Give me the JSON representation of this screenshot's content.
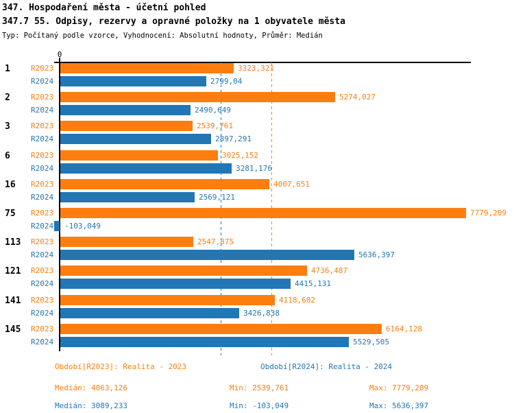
{
  "header": {
    "title1": "347. Hospodaření města - účetní pohled",
    "title2": "347.7 55. Odpisy, rezervy a opravné položky na 1 obyvatele města",
    "meta": "Typ: Počítaný podle vzorce, Vyhodnocení: Absolutní hodnoty, Průměr: Medián"
  },
  "colors": {
    "r2023": "#fd7e0e",
    "r2024": "#2276b4",
    "axis": "#000000"
  },
  "chart_data": {
    "type": "bar",
    "orientation": "horizontal",
    "title": "347.7 55. Odpisy, rezervy a opravné položky na 1 obyvatele města",
    "categories": [
      "1",
      "2",
      "3",
      "6",
      "16",
      "75",
      "113",
      "121",
      "141",
      "145"
    ],
    "series": [
      {
        "name": "R2023",
        "period": "Realita - 2023",
        "color": "#fd7e0e",
        "values": [
          3323.321,
          5274.027,
          2539.761,
          3025.152,
          4007.651,
          7779.209,
          2547.875,
          4736.487,
          4118.602,
          6164.128
        ],
        "value_labels": [
          "3323,321",
          "5274,027",
          "2539,761",
          "3025,152",
          "4007,651",
          "7779,209",
          "2547,875",
          "4736,487",
          "4118,602",
          "6164,128"
        ],
        "median": 4063.126,
        "min": 2539.761,
        "max": 7779.209
      },
      {
        "name": "R2024",
        "period": "Realita - 2024",
        "color": "#2276b4",
        "values": [
          2799.04,
          2490.649,
          2897.291,
          3281.176,
          2569.121,
          -103.049,
          5636.397,
          4415.131,
          3426.838,
          5529.505
        ],
        "value_labels": [
          "2799,04",
          "2490,649",
          "2897,291",
          "3281,176",
          "2569,121",
          "-103,049",
          "5636,397",
          "4415,131",
          "3426,838",
          "5529,505"
        ],
        "median": 3089.233,
        "min": -103.049,
        "max": 5636.397
      }
    ],
    "x_axis": {
      "zero_label": "0",
      "median_lines": true
    },
    "legend_position": "bottom"
  },
  "footer": {
    "period_r2023": "Období[R2023]: Realita - 2023",
    "period_r2024": "Období[R2024]: Realita - 2024",
    "stats_r2023": {
      "median": "Medián: 4063,126",
      "min": "Min: 2539,761",
      "max": "Max: 7779,209"
    },
    "stats_r2024": {
      "median": "Medián: 3089,233",
      "min": "Min: -103,049",
      "max": "Max: 5636,397"
    }
  }
}
